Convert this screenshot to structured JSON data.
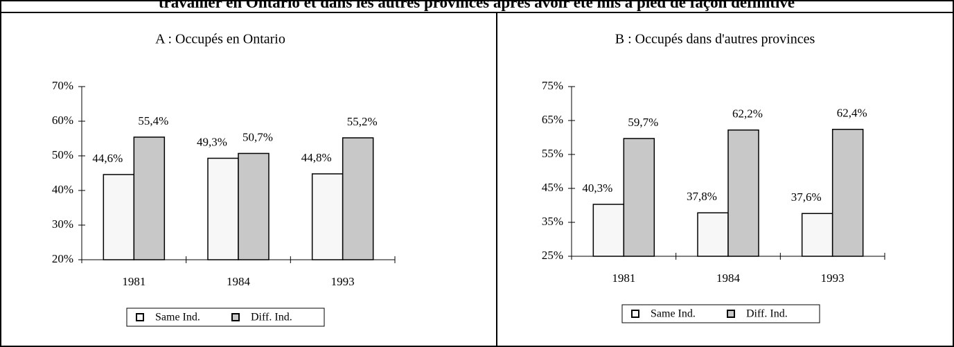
{
  "title": "travailler en Ontario et dans les autres provinces après avoir été mis à pied de façon définitive",
  "chart_data": [
    {
      "type": "bar",
      "title": "A : Occupés en Ontario",
      "categories": [
        "1981",
        "1984",
        "1993"
      ],
      "series": [
        {
          "name": "Same Ind.",
          "color": "#f7f7f7",
          "values": [
            44.6,
            49.3,
            44.8
          ],
          "value_labels": [
            "44,6%",
            "49,3%",
            "44,8%"
          ]
        },
        {
          "name": "Diff. Ind.",
          "color": "#c8c8c8",
          "values": [
            55.4,
            50.7,
            55.2
          ],
          "value_labels": [
            "55,4%",
            "50,7%",
            "55,2%"
          ]
        }
      ],
      "ylim": [
        20,
        70
      ],
      "yticks": [
        {
          "value": 20,
          "label": "20%"
        },
        {
          "value": 30,
          "label": "30%"
        },
        {
          "value": 40,
          "label": "40%"
        },
        {
          "value": 50,
          "label": "50%"
        },
        {
          "value": 60,
          "label": "60%"
        },
        {
          "value": 70,
          "label": "70%"
        }
      ],
      "legend": "bottom"
    },
    {
      "type": "bar",
      "title": "B : Occupés dans d'autres provinces",
      "categories": [
        "1981",
        "1984",
        "1993"
      ],
      "series": [
        {
          "name": "Same Ind.",
          "color": "#f7f7f7",
          "values": [
            40.3,
            37.8,
            37.6
          ],
          "value_labels": [
            "40,3%",
            "37,8%",
            "37,6%"
          ]
        },
        {
          "name": "Diff. Ind.",
          "color": "#c8c8c8",
          "values": [
            59.7,
            62.2,
            62.4
          ],
          "value_labels": [
            "59,7%",
            "62,2%",
            "62,4%"
          ]
        }
      ],
      "ylim": [
        25,
        75
      ],
      "yticks": [
        {
          "value": 25,
          "label": "25%"
        },
        {
          "value": 35,
          "label": "35%"
        },
        {
          "value": 45,
          "label": "45%"
        },
        {
          "value": 55,
          "label": "55%"
        },
        {
          "value": 65,
          "label": "65%"
        },
        {
          "value": 75,
          "label": "75%"
        }
      ],
      "legend": "bottom"
    }
  ]
}
